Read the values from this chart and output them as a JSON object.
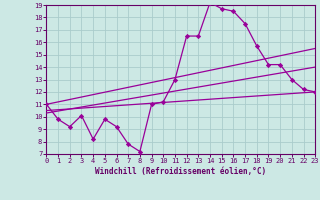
{
  "bg_color": "#cce8e4",
  "line_color": "#990099",
  "grid_color": "#aacccc",
  "spine_color": "#660066",
  "xlabel": "Windchill (Refroidissement éolien,°C)",
  "xlabel_color": "#660066",
  "tick_color": "#660066",
  "xmin": 0,
  "xmax": 23,
  "ymin": 7,
  "ymax": 19,
  "yticks": [
    7,
    8,
    9,
    10,
    11,
    12,
    13,
    14,
    15,
    16,
    17,
    18,
    19
  ],
  "xticks": [
    0,
    1,
    2,
    3,
    4,
    5,
    6,
    7,
    8,
    9,
    10,
    11,
    12,
    13,
    14,
    15,
    16,
    17,
    18,
    19,
    20,
    21,
    22,
    23
  ],
  "jagged_x": [
    0,
    1,
    2,
    3,
    4,
    5,
    6,
    7,
    8,
    9,
    10,
    11,
    12,
    13,
    14,
    15,
    16,
    17,
    18,
    19,
    20,
    21,
    22,
    23
  ],
  "jagged_y": [
    11.0,
    9.8,
    9.2,
    10.1,
    8.2,
    9.8,
    9.2,
    7.8,
    7.2,
    11.0,
    11.2,
    13.0,
    16.5,
    16.5,
    19.2,
    18.7,
    18.5,
    17.5,
    15.7,
    14.2,
    14.2,
    13.0,
    12.2,
    12.0
  ],
  "line1_x": [
    0,
    23
  ],
  "line1_y": [
    11.0,
    15.5
  ],
  "line2_x": [
    0,
    23
  ],
  "line2_y": [
    10.3,
    14.0
  ],
  "line3_x": [
    0,
    23
  ],
  "line3_y": [
    10.5,
    12.0
  ]
}
